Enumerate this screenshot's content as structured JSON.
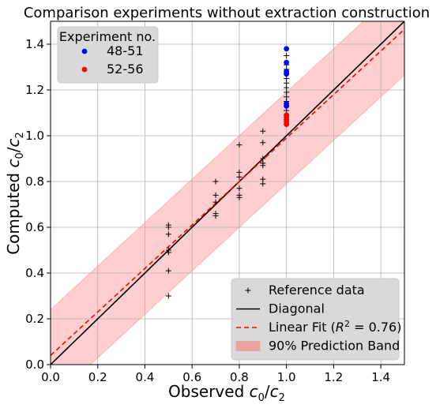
{
  "chart_data": {
    "type": "scatter",
    "title": "Comparison experiments without extraction construction",
    "xlabel": "Observed c₀/c₂",
    "ylabel": "Computed c₀/c₂",
    "xlim": [
      0.0,
      1.5
    ],
    "ylim": [
      0.0,
      1.5
    ],
    "xticks": [
      "0.0",
      "0.2",
      "0.4",
      "0.6",
      "0.8",
      "1.0",
      "1.2",
      "1.4"
    ],
    "yticks": [
      "0.0",
      "0.2",
      "0.4",
      "0.6",
      "0.8",
      "1.0",
      "1.2",
      "1.4"
    ],
    "grid": true,
    "colors": {
      "reference": "#000000",
      "diagonal": "#000000",
      "fit": "#ff0000",
      "band": "#ffb3b3",
      "exp_48_51": "#0000ff",
      "exp_52_56": "#ff0000",
      "legend_bg": "#d9d9d9",
      "grid": "#b0b0b0"
    },
    "legend_experiment": {
      "title": "Experiment no.",
      "placement": "upper-left",
      "entries": [
        "48-51",
        "52-56"
      ]
    },
    "legend_main": {
      "placement": "lower-right",
      "entries": [
        "Reference data",
        "Diagonal",
        "Linear Fit (R² = 0.76)",
        "90% Prediction Band"
      ]
    },
    "series": [
      {
        "name": "Reference data",
        "marker": "plus",
        "points": [
          [
            0.5,
            0.3
          ],
          [
            0.5,
            0.41
          ],
          [
            0.5,
            0.49
          ],
          [
            0.5,
            0.5
          ],
          [
            0.5,
            0.57
          ],
          [
            0.5,
            0.6
          ],
          [
            0.5,
            0.61
          ],
          [
            0.7,
            0.65
          ],
          [
            0.7,
            0.66
          ],
          [
            0.7,
            0.71
          ],
          [
            0.7,
            0.74
          ],
          [
            0.7,
            0.8
          ],
          [
            0.8,
            0.73
          ],
          [
            0.8,
            0.74
          ],
          [
            0.8,
            0.77
          ],
          [
            0.8,
            0.82
          ],
          [
            0.8,
            0.84
          ],
          [
            0.8,
            0.96
          ],
          [
            0.9,
            0.79
          ],
          [
            0.9,
            0.81
          ],
          [
            0.9,
            0.87
          ],
          [
            0.9,
            0.88
          ],
          [
            0.9,
            0.9
          ],
          [
            0.9,
            0.97
          ],
          [
            0.9,
            1.02
          ],
          [
            1.0,
            1.05
          ],
          [
            1.0,
            1.07
          ],
          [
            1.0,
            1.09
          ],
          [
            1.0,
            1.11
          ],
          [
            1.0,
            1.13
          ],
          [
            1.0,
            1.15
          ],
          [
            1.0,
            1.17
          ],
          [
            1.0,
            1.19
          ],
          [
            1.0,
            1.21
          ],
          [
            1.0,
            1.23
          ],
          [
            1.0,
            1.25
          ],
          [
            1.0,
            1.27
          ],
          [
            1.0,
            1.29
          ],
          [
            1.0,
            1.31
          ],
          [
            1.0,
            1.35
          ]
        ]
      },
      {
        "name": "48-51",
        "marker": "dot",
        "points": [
          [
            1.0,
            1.38
          ],
          [
            1.0,
            1.32
          ],
          [
            1.0,
            1.28
          ],
          [
            1.0,
            1.27
          ],
          [
            1.0,
            1.14
          ],
          [
            1.0,
            1.13
          ]
        ]
      },
      {
        "name": "52-56",
        "marker": "dot",
        "points": [
          [
            1.0,
            1.09
          ],
          [
            1.0,
            1.08
          ],
          [
            1.0,
            1.07
          ],
          [
            1.0,
            1.06
          ],
          [
            1.0,
            1.05
          ]
        ]
      }
    ],
    "diagonal": {
      "slope": 1.0,
      "intercept": 0.0
    },
    "linear_fit": {
      "slope": 0.95,
      "intercept": 0.04,
      "r2": 0.76
    },
    "prediction_band": {
      "half_width": 0.2
    }
  }
}
